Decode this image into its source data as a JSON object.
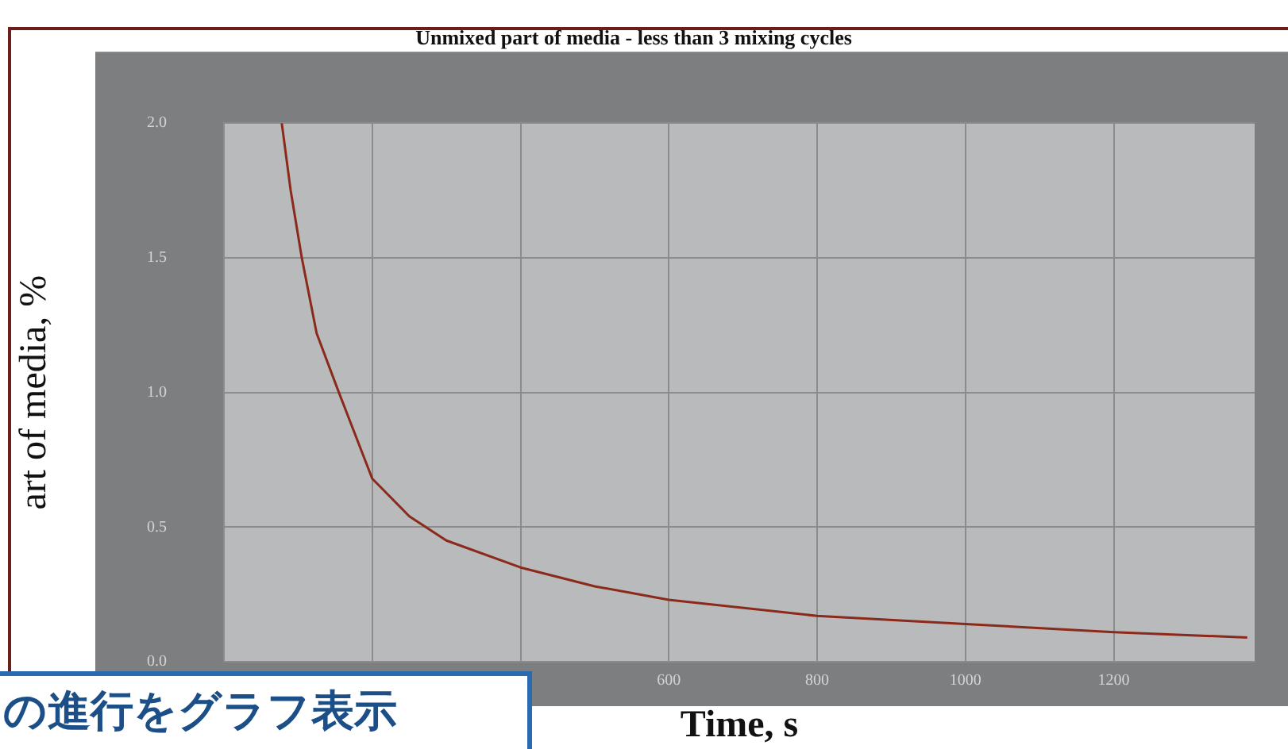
{
  "chart_data": {
    "type": "line",
    "title": "Unmixed part of media - less than 3 mixing cycles",
    "xlabel": "Time, s",
    "ylabel": "art of media, %",
    "annotations": [
      "の進行をグラフ表示"
    ],
    "x": [
      78,
      90,
      105,
      125,
      155,
      200,
      250,
      300,
      400,
      500,
      600,
      800,
      1000,
      1200,
      1380
    ],
    "values": [
      2.0,
      1.75,
      1.5,
      1.22,
      1.0,
      0.68,
      0.54,
      0.45,
      0.35,
      0.28,
      0.23,
      0.17,
      0.14,
      0.11,
      0.09
    ],
    "color": "#8b2a1a",
    "xlim": [
      0,
      1390
    ],
    "xticks": [
      {
        "value": 0,
        "label": null
      },
      {
        "value": 200,
        "label": null
      },
      {
        "value": 400,
        "label": null
      },
      600,
      800,
      1000,
      1200
    ],
    "ylim": [
      0,
      2
    ],
    "yticks": [
      {
        "value": 0,
        "label": "0.0"
      },
      0.5,
      {
        "value": 1,
        "label": "1.0"
      },
      1.5,
      {
        "value": 2,
        "label": "2.0"
      }
    ],
    "grid": true
  }
}
